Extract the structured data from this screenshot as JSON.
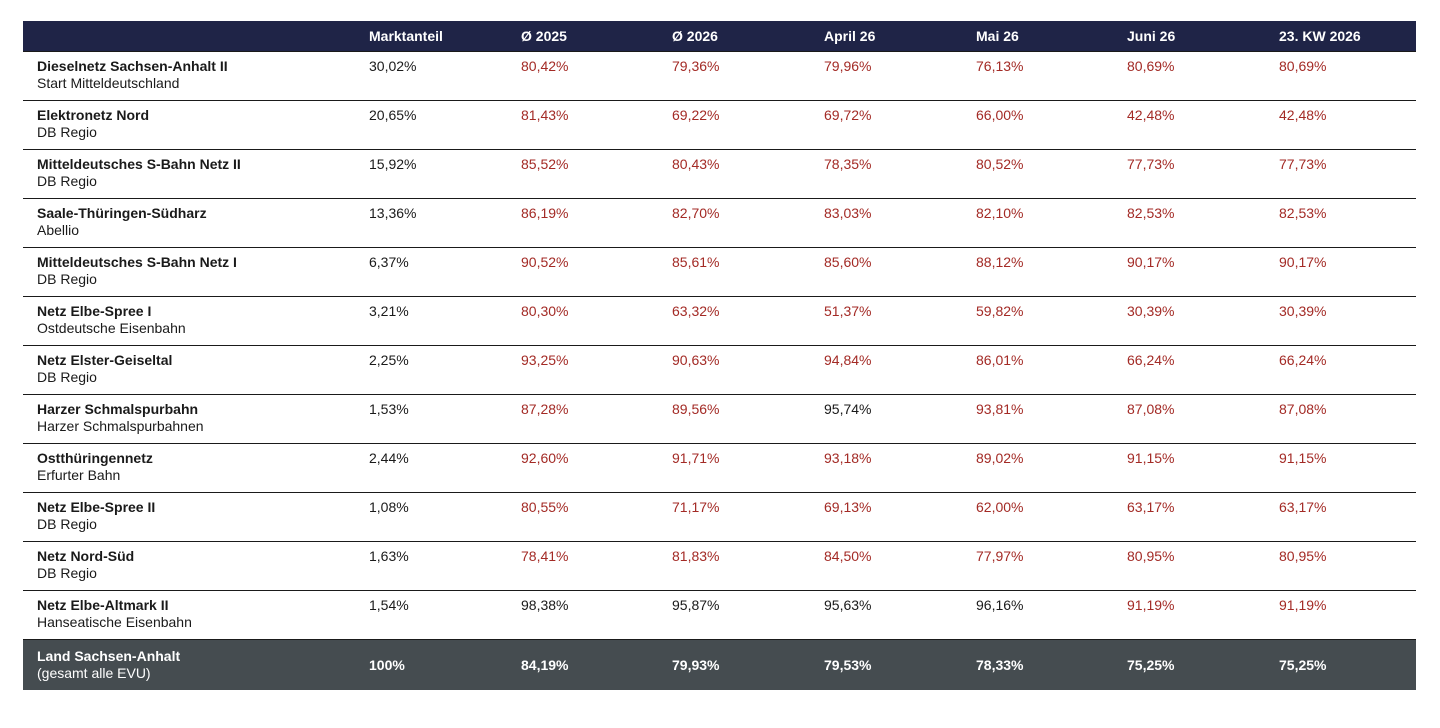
{
  "header": {
    "columns": [
      "Marktanteil",
      "Ø 2025",
      "Ø 2026",
      "April 26",
      "Mai 26",
      "Juni 26",
      "23. KW 2026"
    ]
  },
  "rows": [
    {
      "name": "Dieselnetz Sachsen-Anhalt II",
      "operator": "Start Mitteldeutschland",
      "cells": [
        "30,02%",
        "80,42%",
        "79,36%",
        "79,96%",
        "76,13%",
        "80,69%",
        "80,69%"
      ],
      "colors": [
        "#1a1a1a",
        "#a32a25",
        "#a32a25",
        "#a32a25",
        "#a32a25",
        "#a32a25",
        "#a32a25"
      ]
    },
    {
      "name": "Elektronetz Nord",
      "operator": "DB Regio",
      "cells": [
        "20,65%",
        "81,43%",
        "69,22%",
        "69,72%",
        "66,00%",
        "42,48%",
        "42,48%"
      ],
      "colors": [
        "#1a1a1a",
        "#a32a25",
        "#a32a25",
        "#a32a25",
        "#a32a25",
        "#a32a25",
        "#a32a25"
      ]
    },
    {
      "name": "Mitteldeutsches S-Bahn Netz II",
      "operator": "DB Regio",
      "cells": [
        "15,92%",
        "85,52%",
        "80,43%",
        "78,35%",
        "80,52%",
        "77,73%",
        "77,73%"
      ],
      "colors": [
        "#1a1a1a",
        "#a32a25",
        "#a32a25",
        "#a32a25",
        "#a32a25",
        "#a32a25",
        "#a32a25"
      ]
    },
    {
      "name": "Saale-Thüringen-Südharz",
      "operator": "Abellio",
      "cells": [
        "13,36%",
        "86,19%",
        "82,70%",
        "83,03%",
        "82,10%",
        "82,53%",
        "82,53%"
      ],
      "colors": [
        "#1a1a1a",
        "#a32a25",
        "#a32a25",
        "#a32a25",
        "#a32a25",
        "#a32a25",
        "#a32a25"
      ]
    },
    {
      "name": "Mitteldeutsches S-Bahn Netz I",
      "operator": "DB Regio",
      "cells": [
        "6,37%",
        "90,52%",
        "85,61%",
        "85,60%",
        "88,12%",
        "90,17%",
        "90,17%"
      ],
      "colors": [
        "#1a1a1a",
        "#a32a25",
        "#a32a25",
        "#a32a25",
        "#a32a25",
        "#a32a25",
        "#a32a25"
      ]
    },
    {
      "name": "Netz Elbe-Spree I",
      "operator": "Ostdeutsche Eisenbahn",
      "cells": [
        "3,21%",
        "80,30%",
        "63,32%",
        "51,37%",
        "59,82%",
        "30,39%",
        "30,39%"
      ],
      "colors": [
        "#1a1a1a",
        "#a32a25",
        "#a32a25",
        "#a32a25",
        "#a32a25",
        "#a32a25",
        "#a32a25"
      ]
    },
    {
      "name": "Netz Elster-Geiseltal",
      "operator": "DB Regio",
      "cells": [
        "2,25%",
        "93,25%",
        "90,63%",
        "94,84%",
        "86,01%",
        "66,24%",
        "66,24%"
      ],
      "colors": [
        "#1a1a1a",
        "#a32a25",
        "#a32a25",
        "#a32a25",
        "#a32a25",
        "#a32a25",
        "#a32a25"
      ]
    },
    {
      "name": "Harzer Schmalspurbahn",
      "operator": "Harzer Schmalspurbahnen",
      "cells": [
        "1,53%",
        "87,28%",
        "89,56%",
        "95,74%",
        "93,81%",
        "87,08%",
        "87,08%"
      ],
      "colors": [
        "#1a1a1a",
        "#a32a25",
        "#a32a25",
        "#1a1a1a",
        "#a32a25",
        "#a32a25",
        "#a32a25"
      ]
    },
    {
      "name": "Ostthüringennetz",
      "operator": "Erfurter Bahn",
      "cells": [
        "2,44%",
        "92,60%",
        "91,71%",
        "93,18%",
        "89,02%",
        "91,15%",
        "91,15%"
      ],
      "colors": [
        "#1a1a1a",
        "#a32a25",
        "#a32a25",
        "#a32a25",
        "#a32a25",
        "#a32a25",
        "#a32a25"
      ]
    },
    {
      "name": "Netz Elbe-Spree II",
      "operator": "DB Regio",
      "cells": [
        "1,08%",
        "80,55%",
        "71,17%",
        "69,13%",
        "62,00%",
        "63,17%",
        "63,17%"
      ],
      "colors": [
        "#1a1a1a",
        "#a32a25",
        "#a32a25",
        "#a32a25",
        "#a32a25",
        "#a32a25",
        "#a32a25"
      ]
    },
    {
      "name": "Netz Nord-Süd",
      "operator": "DB Regio",
      "cells": [
        "1,63%",
        "78,41%",
        "81,83%",
        "84,50%",
        "77,97%",
        "80,95%",
        "80,95%"
      ],
      "colors": [
        "#1a1a1a",
        "#a32a25",
        "#a32a25",
        "#a32a25",
        "#a32a25",
        "#a32a25",
        "#a32a25"
      ]
    },
    {
      "name": "Netz Elbe-Altmark II",
      "operator": "Hanseatische Eisenbahn",
      "cells": [
        "1,54%",
        "98,38%",
        "95,87%",
        "95,63%",
        "96,16%",
        "91,19%",
        "91,19%"
      ],
      "colors": [
        "#1a1a1a",
        "#1a1a1a",
        "#1a1a1a",
        "#1a1a1a",
        "#1a1a1a",
        "#a32a25",
        "#a32a25"
      ]
    }
  ],
  "total": {
    "name": "Land Sachsen-Anhalt",
    "note": "(gesamt alle EVU)",
    "cells": [
      "100%",
      "84,19%",
      "79,93%",
      "79,53%",
      "78,33%",
      "75,25%",
      "75,25%"
    ]
  }
}
